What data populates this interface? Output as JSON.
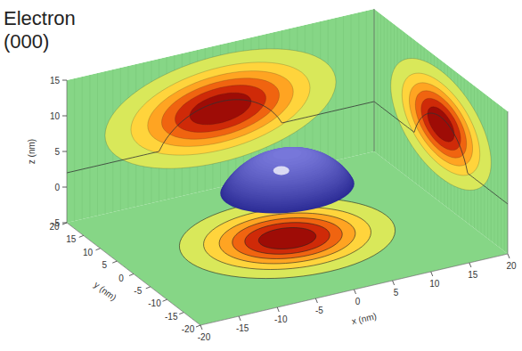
{
  "chart_data": {
    "type": "surface3d",
    "title": "Electron",
    "subtitle": "(000)",
    "x_label": "x (nm)",
    "y_label": "y (nm)",
    "z_label": "z (nm)",
    "xlim": [
      -20,
      20
    ],
    "ylim": [
      -20,
      20
    ],
    "zlim": [
      -5,
      15
    ],
    "xticks": [
      -20,
      -15,
      -10,
      -5,
      0,
      5,
      10,
      15,
      20
    ],
    "yticks": [
      -20,
      -15,
      -10,
      -5,
      0,
      5,
      10,
      15,
      20
    ],
    "zticks": [
      -5,
      0,
      5,
      10,
      15
    ],
    "color": "#86d686",
    "colors": [
      "#d9e85a",
      "#ffd43c",
      "#ffa422",
      "#f06410",
      "#cf2a08",
      "#9e0c06"
    ],
    "contour_levels": [
      0.1,
      0.25,
      0.4,
      0.55,
      0.7,
      0.85
    ],
    "density_xy": {
      "center_x": 0,
      "center_y": 0,
      "width": 6
    },
    "density_xz": {
      "center_x": 0,
      "center_z": 6,
      "width_x": 7,
      "width_z": 3.5
    },
    "density_yz": {
      "center_y": 0,
      "center_z": 6,
      "width_y": 7,
      "width_z": 3.5
    },
    "dot": {
      "radius": 8,
      "height": 5,
      "base_z": 2,
      "color": "#4a4ac8"
    }
  }
}
